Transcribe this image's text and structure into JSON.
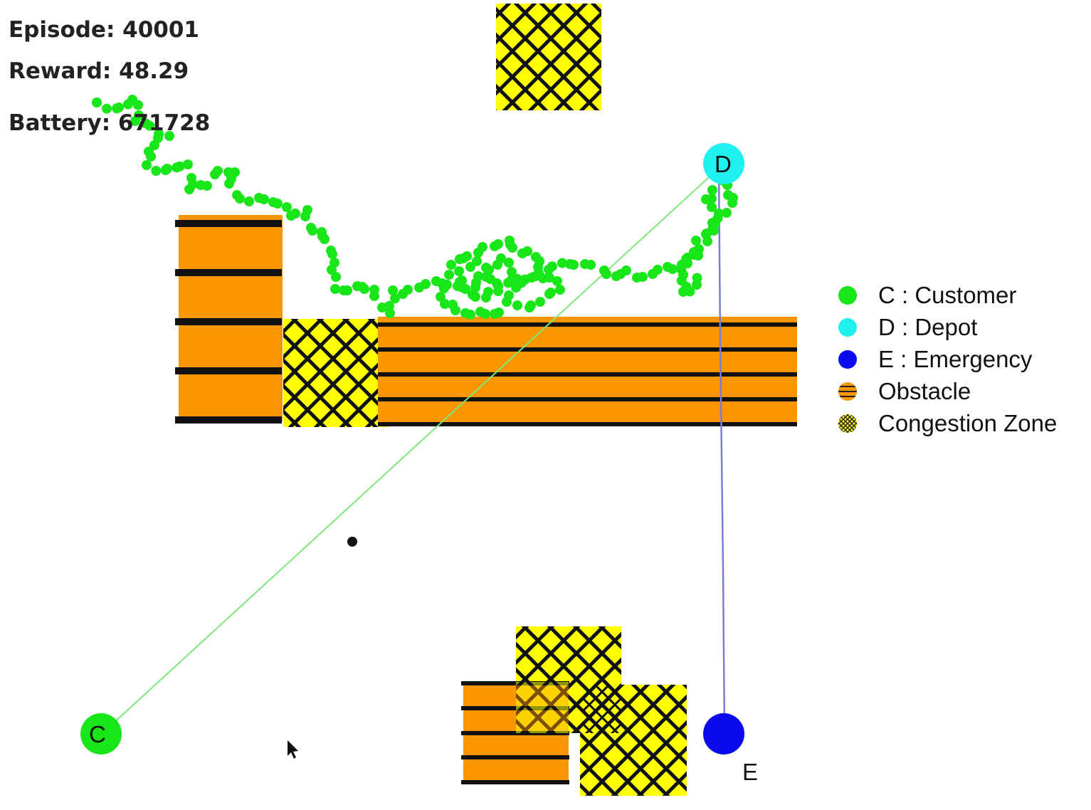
{
  "hud": {
    "episode": "Episode: 40001",
    "reward": "Reward: 48.29",
    "battery": "Battery: 671728"
  },
  "nodes": {
    "customer": {
      "label": "C",
      "color": "#19e619"
    },
    "depot": {
      "label": "D",
      "color": "#1ff0f0"
    },
    "emergency": {
      "label": "E",
      "color": "#0a0aee"
    }
  },
  "legend": [
    {
      "name": "customer",
      "icon": "green-circle-icon",
      "text": "C : Customer"
    },
    {
      "name": "depot",
      "icon": "cyan-circle-icon",
      "text": "D : Depot"
    },
    {
      "name": "emergency",
      "icon": "blue-circle-icon",
      "text": "E : Emergency"
    },
    {
      "name": "obstacle",
      "icon": "striped-orange-circle-icon",
      "text": "Obstacle"
    },
    {
      "name": "congestion",
      "icon": "hatched-yellow-circle-icon",
      "text": "Congestion Zone"
    }
  ],
  "colors": {
    "trail": "#19e619",
    "obstacle": "#fa9600",
    "congestion": "#ffff00",
    "route_customer": "#7ee87e",
    "route_emergency": "#7b7bd8"
  }
}
